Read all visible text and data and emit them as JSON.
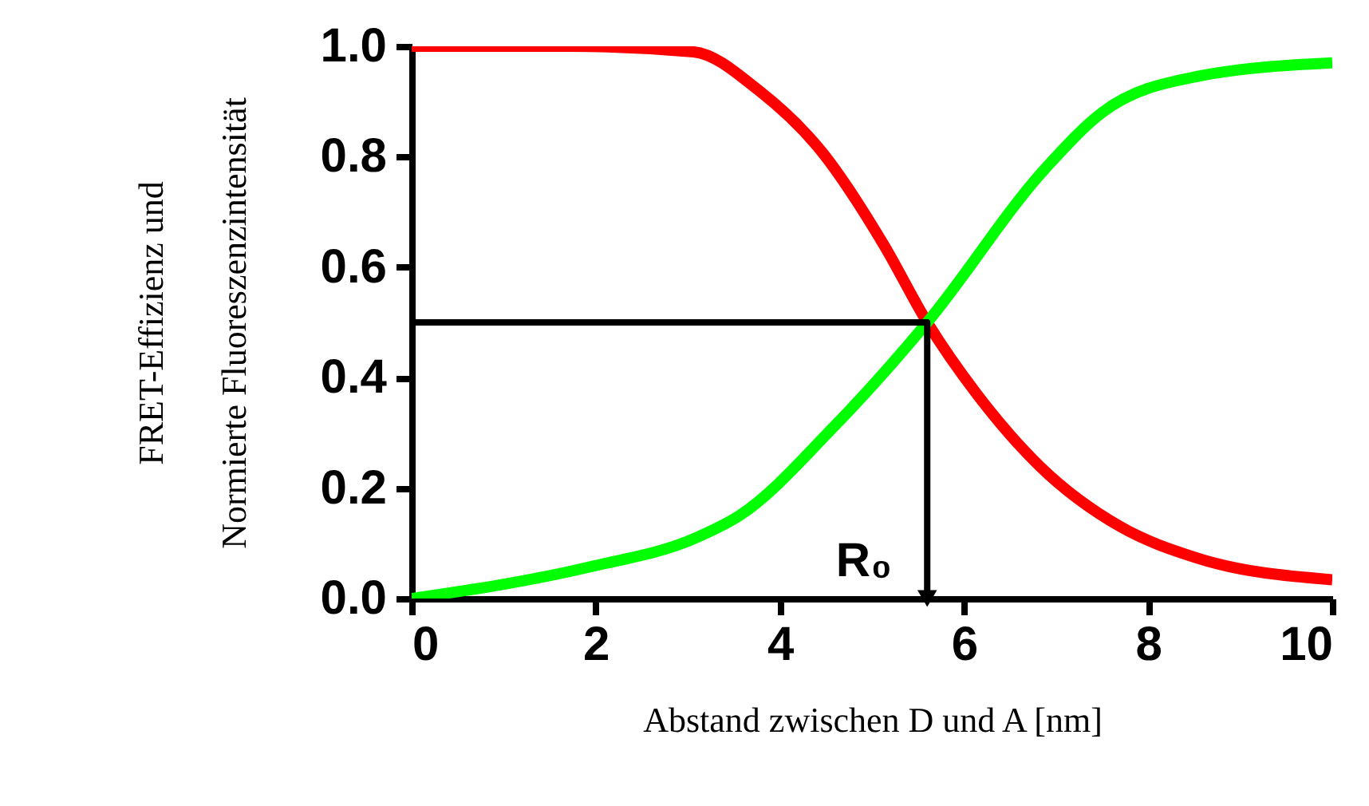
{
  "chart_data": {
    "type": "line",
    "xlabel": "Abstand zwischen D und A [nm]",
    "ylabel": "FRET-Effizienz und\nNormierte Fluoreszenzintensität",
    "xlim": [
      0,
      10
    ],
    "xticks": [
      0,
      2,
      4,
      6,
      8,
      10
    ],
    "ylim": [
      0,
      1
    ],
    "yticks": [
      {
        "value": 0,
        "label": "0.0"
      },
      {
        "value": 0.2,
        "label": "0.2"
      },
      {
        "value": 0.4,
        "label": "0.4"
      },
      {
        "value": 0.6,
        "label": "0.6"
      },
      {
        "value": 0.8,
        "label": "0.8"
      },
      {
        "value": 1,
        "label": "1.0"
      }
    ],
    "grid": false,
    "marker": "none",
    "line_style": "solid",
    "series": [
      {
        "color": "#ff0000",
        "x": [
          0,
          1.73,
          3.06,
          3.77,
          4.45,
          5.13,
          5.6,
          6.14,
          6.82,
          7.7,
          8.52,
          10
        ],
        "values": [
          1.0,
          1.0,
          0.99,
          0.92,
          0.81,
          0.64,
          0.5,
          0.37,
          0.24,
          0.13,
          0.074,
          0.034
        ]
      },
      {
        "color": "#00ff00",
        "x": [
          0,
          1.93,
          3.09,
          3.56,
          4.58,
          5.6,
          6.89,
          7.5,
          8.52,
          10
        ],
        "values": [
          0.0,
          0.057,
          0.11,
          0.15,
          0.31,
          0.5,
          0.78,
          0.88,
          0.945,
          0.97
        ]
      },
      {
        "color": "#000000",
        "x": [
          0,
          5.6,
          5.6
        ],
        "values": [
          0.5,
          0.5,
          0
        ]
      }
    ],
    "annotations": [
      {
        "text": "R₀",
        "x": 5.6,
        "y": 0
      }
    ]
  }
}
